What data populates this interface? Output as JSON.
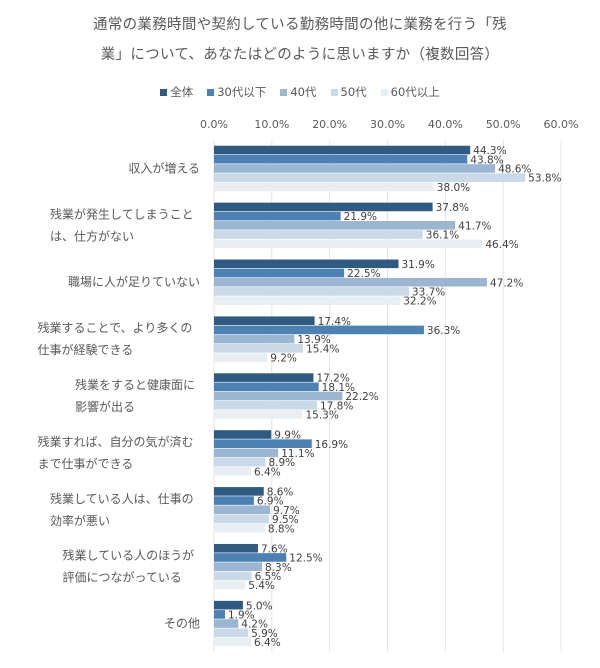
{
  "title_lines": [
    "通常の業務時間や契約している勤務時間の他に業務を行う「残",
    "業」について、あなたはどのように思いますか（複数回答）"
  ],
  "chart_data": {
    "type": "bar",
    "orientation": "horizontal",
    "title": "通常の業務時間や契約している勤務時間の他に業務を行う「残業」について、あなたはどのように思いますか（複数回答）",
    "xlabel": "",
    "ylabel": "",
    "xlim": [
      0,
      60
    ],
    "x_ticks": [
      "0.0%",
      "10.0%",
      "20.0%",
      "30.0%",
      "40.0%",
      "50.0%",
      "60.0%"
    ],
    "grid": true,
    "legend_position": "top",
    "categories": [
      [
        "収入が増える"
      ],
      [
        "残業が発生してしまうこと",
        "は、仕方がない"
      ],
      [
        "職場に人が足りていない"
      ],
      [
        "残業することで、より多くの",
        "仕事が経験できる"
      ],
      [
        "残業をすると健康面に",
        "影響が出る"
      ],
      [
        "残業すれば、自分の気が済む",
        "まで仕事ができる"
      ],
      [
        "残業している人は、仕事の",
        "効率が悪い"
      ],
      [
        "残業している人のほうが",
        "評価につながっている"
      ],
      [
        "その他"
      ]
    ],
    "series": [
      {
        "name": "全体",
        "color": "#2f5b82",
        "values": [
          44.3,
          37.8,
          31.9,
          17.4,
          17.2,
          9.9,
          8.6,
          7.6,
          5.0
        ]
      },
      {
        "name": "30代以下",
        "color": "#4b81b3",
        "values": [
          43.8,
          21.9,
          22.5,
          36.3,
          18.1,
          16.9,
          6.9,
          12.5,
          1.9
        ]
      },
      {
        "name": "40代",
        "color": "#9bb6d3",
        "values": [
          48.6,
          41.7,
          47.2,
          13.9,
          22.2,
          11.1,
          9.7,
          8.3,
          4.2
        ]
      },
      {
        "name": "50代",
        "color": "#c9d9e7",
        "values": [
          53.8,
          36.1,
          33.7,
          15.4,
          17.8,
          8.9,
          9.5,
          6.5,
          5.9
        ]
      },
      {
        "name": "60代以上",
        "color": "#e9eef3",
        "values": [
          38.0,
          46.4,
          32.2,
          9.2,
          15.3,
          6.4,
          8.8,
          5.4,
          6.4
        ]
      }
    ],
    "value_suffix": "%"
  }
}
